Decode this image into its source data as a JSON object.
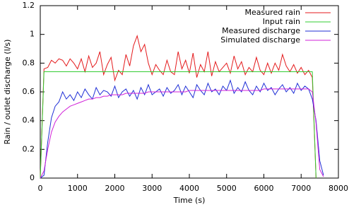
{
  "chart_data": {
    "type": "line",
    "x_label": "Time (s)",
    "y_label": "Rain / outlet discharge (l/s)",
    "x": [
      0,
      100,
      200,
      300,
      400,
      500,
      600,
      700,
      800,
      900,
      1000,
      1100,
      1200,
      1300,
      1400,
      1500,
      1600,
      1700,
      1800,
      1900,
      2000,
      2100,
      2200,
      2300,
      2400,
      2500,
      2600,
      2700,
      2800,
      2900,
      3000,
      3100,
      3200,
      3300,
      3400,
      3500,
      3600,
      3700,
      3800,
      3900,
      4000,
      4100,
      4200,
      4300,
      4400,
      4500,
      4600,
      4700,
      4800,
      4900,
      5000,
      5100,
      5200,
      5300,
      5400,
      5500,
      5600,
      5700,
      5800,
      5900,
      6000,
      6100,
      6200,
      6300,
      6400,
      6500,
      6600,
      6700,
      6800,
      6900,
      7000,
      7100,
      7200,
      7300,
      7400,
      7500,
      7600,
      7700
    ],
    "series": [
      {
        "name": "Measured rain",
        "color": "#e41a1c",
        "values": [
          0,
          0.76,
          0.77,
          0.82,
          0.8,
          0.83,
          0.82,
          0.78,
          0.83,
          0.8,
          0.76,
          0.83,
          0.74,
          0.85,
          0.77,
          0.8,
          0.88,
          0.72,
          0.79,
          0.84,
          0.68,
          0.75,
          0.72,
          0.86,
          0.78,
          0.92,
          0.99,
          0.88,
          0.93,
          0.8,
          0.72,
          0.79,
          0.75,
          0.72,
          0.82,
          0.74,
          0.72,
          0.88,
          0.76,
          0.82,
          0.73,
          0.87,
          0.7,
          0.79,
          0.74,
          0.88,
          0.71,
          0.81,
          0.74,
          0.77,
          0.8,
          0.73,
          0.85,
          0.76,
          0.81,
          0.72,
          0.77,
          0.74,
          0.84,
          0.75,
          0.72,
          0.8,
          0.73,
          0.8,
          0.75,
          0.86,
          0.78,
          0.74,
          0.79,
          0.73,
          0.77,
          0.72,
          0.75,
          0.7,
          0,
          null,
          null,
          null
        ]
      },
      {
        "name": "Input rain",
        "color": "#33cc33",
        "values": [
          0,
          0.74,
          0.74,
          0.74,
          0.74,
          0.74,
          0.74,
          0.74,
          0.74,
          0.74,
          0.74,
          0.74,
          0.74,
          0.74,
          0.74,
          0.74,
          0.74,
          0.74,
          0.74,
          0.74,
          0.74,
          0.74,
          0.74,
          0.74,
          0.74,
          0.74,
          0.74,
          0.74,
          0.74,
          0.74,
          0.74,
          0.74,
          0.74,
          0.74,
          0.74,
          0.74,
          0.74,
          0.74,
          0.74,
          0.74,
          0.74,
          0.74,
          0.74,
          0.74,
          0.74,
          0.74,
          0.74,
          0.74,
          0.74,
          0.74,
          0.74,
          0.74,
          0.74,
          0.74,
          0.74,
          0.74,
          0.74,
          0.74,
          0.74,
          0.74,
          0.74,
          0.74,
          0.74,
          0.74,
          0.74,
          0.74,
          0.74,
          0.74,
          0.74,
          0.74,
          0.74,
          0.74,
          0.74,
          0.74,
          0,
          null,
          null,
          null
        ]
      },
      {
        "name": "Measured discharge",
        "color": "#1f2fd6",
        "values": [
          0,
          0.02,
          0.25,
          0.42,
          0.5,
          0.53,
          0.6,
          0.55,
          0.58,
          0.54,
          0.6,
          0.56,
          0.62,
          0.58,
          0.55,
          0.63,
          0.58,
          0.61,
          0.6,
          0.57,
          0.64,
          0.56,
          0.6,
          0.62,
          0.57,
          0.61,
          0.55,
          0.63,
          0.58,
          0.65,
          0.58,
          0.6,
          0.62,
          0.57,
          0.63,
          0.59,
          0.61,
          0.65,
          0.58,
          0.64,
          0.6,
          0.56,
          0.65,
          0.61,
          0.58,
          0.66,
          0.6,
          0.62,
          0.58,
          0.64,
          0.61,
          0.68,
          0.59,
          0.63,
          0.6,
          0.67,
          0.61,
          0.58,
          0.64,
          0.6,
          0.66,
          0.61,
          0.63,
          0.58,
          0.62,
          0.65,
          0.6,
          0.63,
          0.59,
          0.66,
          0.61,
          0.64,
          0.62,
          0.55,
          0.4,
          0.12,
          0.02,
          null
        ]
      },
      {
        "name": "Simulated discharge",
        "color": "#d020d8",
        "values": [
          0,
          0.05,
          0.2,
          0.32,
          0.39,
          0.43,
          0.46,
          0.48,
          0.5,
          0.51,
          0.52,
          0.53,
          0.54,
          0.55,
          0.55,
          0.56,
          0.56,
          0.57,
          0.57,
          0.58,
          0.58,
          0.58,
          0.58,
          0.59,
          0.59,
          0.59,
          0.59,
          0.59,
          0.59,
          0.6,
          0.6,
          0.6,
          0.6,
          0.6,
          0.6,
          0.6,
          0.6,
          0.6,
          0.6,
          0.6,
          0.61,
          0.61,
          0.61,
          0.61,
          0.61,
          0.61,
          0.61,
          0.61,
          0.61,
          0.61,
          0.61,
          0.61,
          0.61,
          0.61,
          0.61,
          0.61,
          0.61,
          0.61,
          0.61,
          0.61,
          0.62,
          0.62,
          0.62,
          0.62,
          0.62,
          0.62,
          0.62,
          0.62,
          0.62,
          0.62,
          0.62,
          0.62,
          0.62,
          0.6,
          0.38,
          0.06,
          0.01,
          null
        ]
      }
    ],
    "xlim": [
      0,
      8000
    ],
    "xticks": [
      0,
      1000,
      2000,
      3000,
      4000,
      5000,
      6000,
      7000,
      8000
    ],
    "ylim": [
      0,
      1.2
    ],
    "yticks": [
      0,
      0.2,
      0.4,
      0.6,
      0.8,
      1,
      1.2
    ],
    "grid": false,
    "legend": "top-right"
  }
}
